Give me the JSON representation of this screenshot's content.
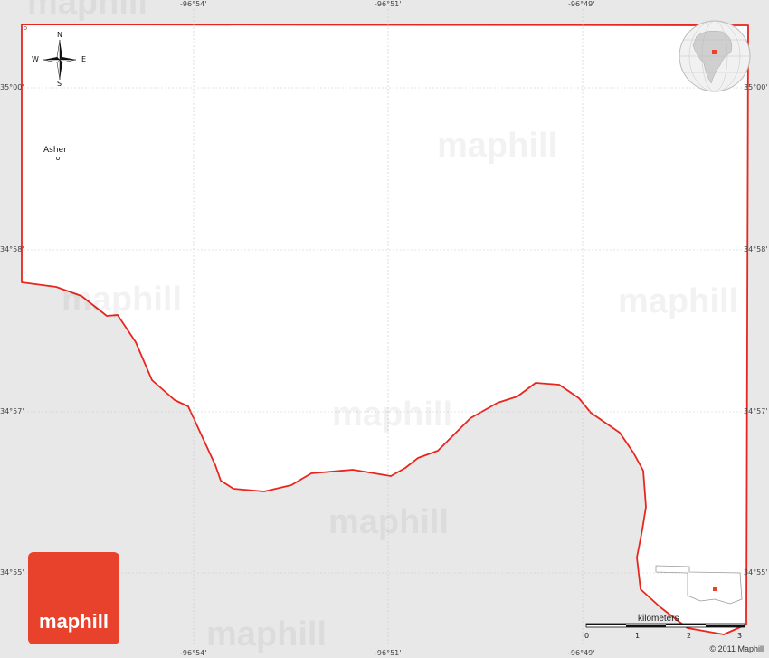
{
  "top_labels": [
    "-96°54'",
    "-96°51'",
    "-96°49'"
  ],
  "bottom_labels": [
    "-96°54'",
    "-96°51'",
    "-96°49'"
  ],
  "left_labels": [
    "35°00'",
    "34°58'",
    "34°57'",
    "34°55'"
  ],
  "right_labels": [
    "35°00'",
    "34°58'",
    "34°57'",
    "34°55'"
  ],
  "place": "Asher",
  "compass": {
    "n": "N",
    "s": "S",
    "e": "E",
    "w": "W"
  },
  "watermark": "maphill",
  "logo": "maphill",
  "scale": {
    "title": "kilometers",
    "ticks": [
      "0",
      "1",
      "2",
      "3"
    ]
  },
  "copyright": "© 2011 Maphill",
  "colors": {
    "boundary": "#e8261d",
    "land": "#ffffff",
    "background": "#e9e8e9",
    "logo": "#e8412c"
  },
  "icons": [
    "compass-rose-icon",
    "globe-icon",
    "state-locator-icon"
  ]
}
